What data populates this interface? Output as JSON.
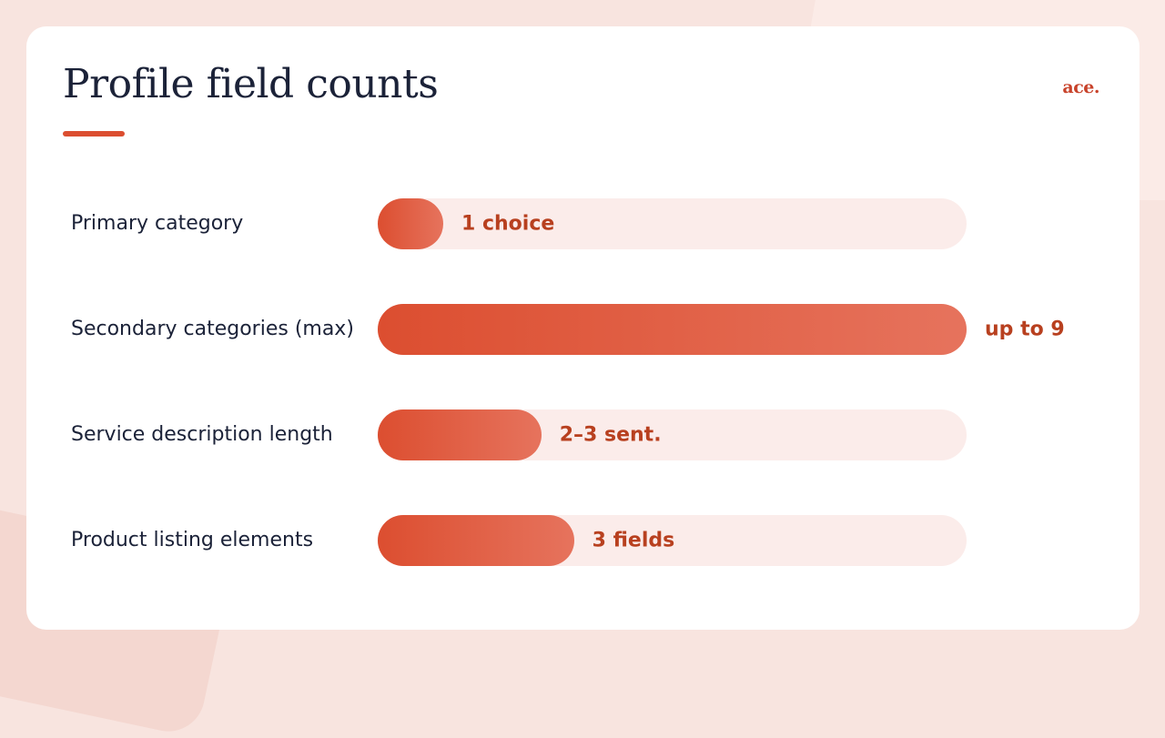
{
  "title": "Profile field counts",
  "logo": "ace.",
  "colors": {
    "accent": "#dc4e30",
    "bar_gradient_end": "#e6735d",
    "track": "#fbecea",
    "value_text": "#b8401f",
    "text": "#1b2238"
  },
  "chart_data": {
    "type": "bar",
    "orientation": "horizontal",
    "title": "Profile field counts",
    "xlim": [
      0,
      9
    ],
    "grid": false,
    "categories": [
      "Primary category",
      "Secondary categories (max)",
      "Service description length",
      "Product listing elements"
    ],
    "values": [
      1,
      9,
      2.5,
      3
    ],
    "value_labels": [
      "1 choice",
      "up to 9",
      "2–3 sent.",
      "3 fields"
    ]
  }
}
